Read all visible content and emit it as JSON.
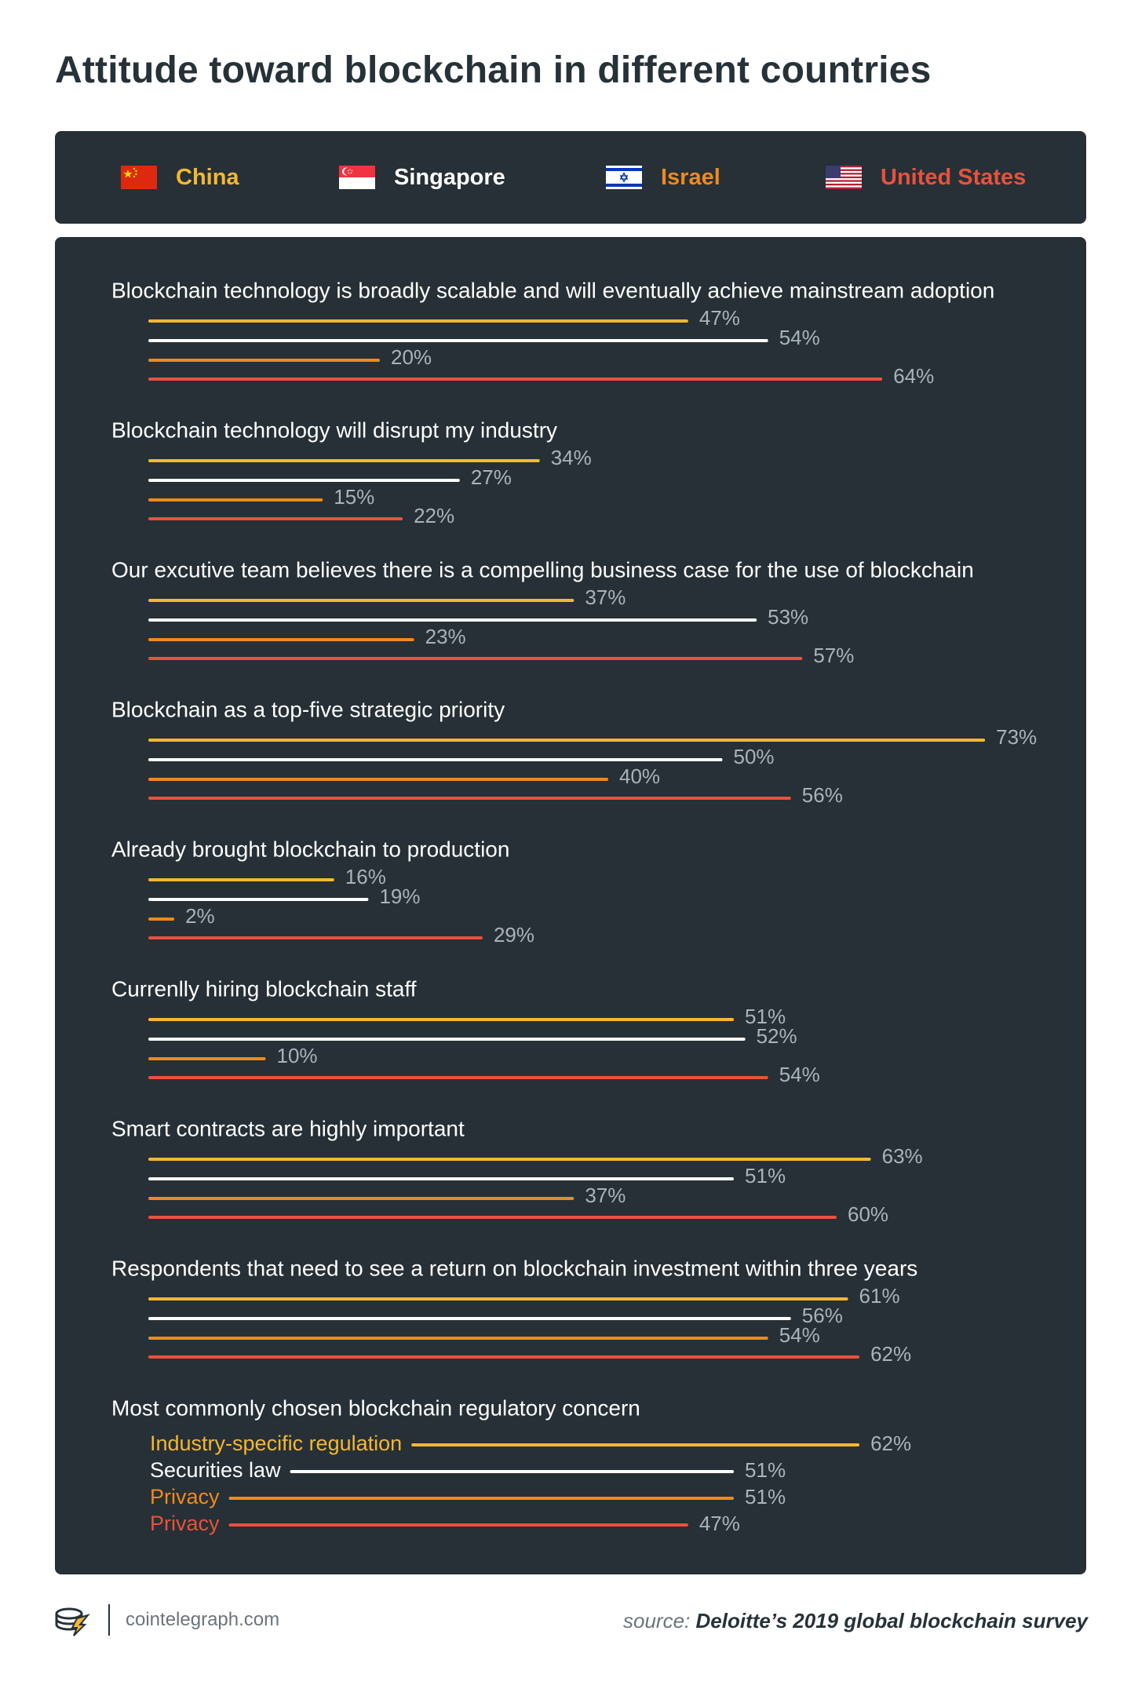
{
  "title": "Attitude toward blockchain in different countries",
  "legend": [
    {
      "label": "China",
      "color": "#f5b82e",
      "flag": "china-flag-icon"
    },
    {
      "label": "Singapore",
      "color": "#ffffff",
      "flag": "singapore-flag-icon"
    },
    {
      "label": "Israel",
      "color": "#f08a1c",
      "flag": "israel-flag-icon"
    },
    {
      "label": "United States",
      "color": "#e8523d",
      "flag": "us-flag-icon"
    }
  ],
  "chart_data": {
    "type": "bar",
    "orientation": "horizontal",
    "series": [
      "China",
      "Singapore",
      "Israel",
      "United States"
    ],
    "colors": [
      "#f5b82e",
      "#ffffff",
      "#f08a1c",
      "#e8523d"
    ],
    "groups": [
      {
        "label": "Blockchain technology is broadly scalable and will eventually achieve mainstream adoption",
        "values": [
          47,
          54,
          20,
          64
        ]
      },
      {
        "label": "Blockchain technology will disrupt my industry",
        "values": [
          34,
          27,
          15,
          22
        ]
      },
      {
        "label": "Our excutive team believes there is a compelling business case for the use of blockchain",
        "values": [
          37,
          53,
          23,
          57
        ]
      },
      {
        "label": "Blockchain as a top-five strategic priority",
        "values": [
          73,
          50,
          40,
          56
        ]
      },
      {
        "label": "Already brought blockchain to production",
        "values": [
          16,
          19,
          2,
          29
        ]
      },
      {
        "label": "Currenlly hiring blockchain staff",
        "values": [
          51,
          52,
          10,
          54
        ]
      },
      {
        "label": "Smart contracts are highly important",
        "values": [
          63,
          51,
          37,
          60
        ]
      },
      {
        "label": "Respondents that need to see a return on blockchain investment within three years",
        "values": [
          61,
          56,
          54,
          62
        ]
      }
    ],
    "regulatory": {
      "label": "Most commonly chosen blockchain regulatory concern",
      "items": [
        {
          "concern": "Industry-specific regulation",
          "value": 62
        },
        {
          "concern": "Securities law",
          "value": 51
        },
        {
          "concern": "Privacy",
          "value": 51
        },
        {
          "concern": "Privacy",
          "value": 47
        }
      ]
    },
    "value_suffix": "%"
  },
  "footer": {
    "site": "cointelegraph.com",
    "source_prefix": "source:",
    "source_text": "Deloitte’s 2019 global blockchain survey"
  }
}
